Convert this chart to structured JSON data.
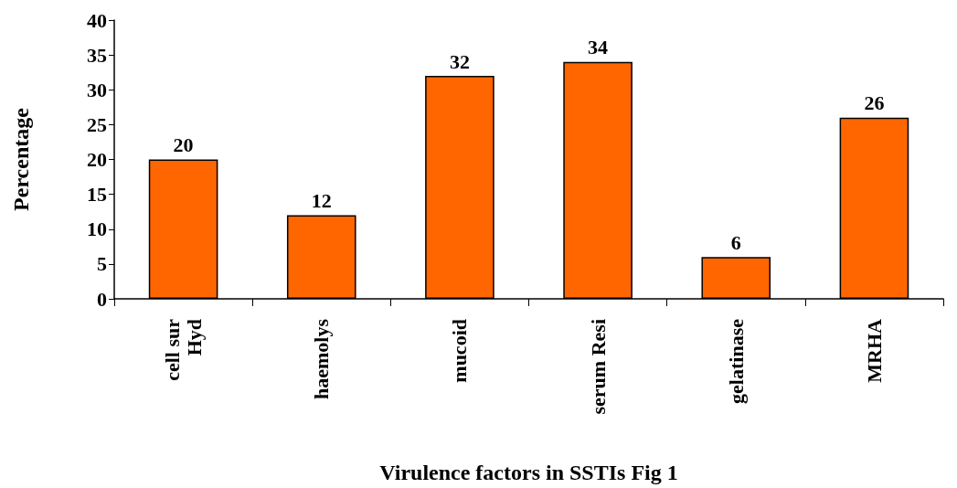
{
  "chart_data": {
    "type": "bar",
    "xlabel": "Virulence factors in SSTIs Fig 1",
    "ylabel": "Percentage",
    "categories": [
      "cell sur\nHyd",
      "haemolys",
      "mucoid",
      "serum Resi",
      "gelatinase",
      "MRHA"
    ],
    "values": [
      20,
      12,
      32,
      34,
      6,
      26
    ],
    "color": "#ff6600",
    "ylim": [
      0,
      40
    ],
    "yticks": [
      0,
      5,
      10,
      15,
      20,
      25,
      30,
      35,
      40
    ],
    "grid": false,
    "data_labels": true
  }
}
